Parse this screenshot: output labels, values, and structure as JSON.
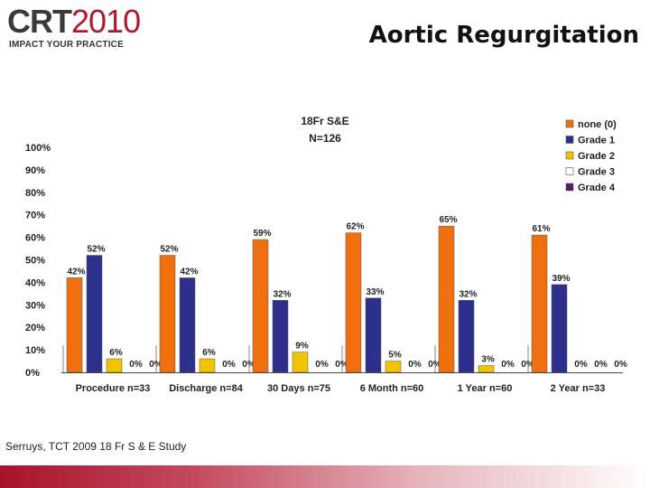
{
  "header": {
    "logo_crt": "CRT",
    "logo_year": "2010",
    "logo_tagline": "IMPACT YOUR PRACTICE",
    "title": "Aortic Regurgitation"
  },
  "caption": "Serruys, TCT 2009 18 Fr S & E Study",
  "colors": {
    "none": "#f07010",
    "grade1": "#2e2e8c",
    "grade2": "#f2c400",
    "grade3": "#ffffff",
    "grade4": "#5a1a6a",
    "footer_accent": "#a8122c"
  },
  "chart_data": {
    "type": "bar",
    "title": "18Fr S&E",
    "subtitle": "N=126",
    "xlabel": "",
    "ylabel": "",
    "ylim": [
      0,
      100
    ],
    "yticks": [
      "0%",
      "10%",
      "20%",
      "30%",
      "40%",
      "50%",
      "60%",
      "70%",
      "80%",
      "90%",
      "100%"
    ],
    "legend_position": "top-right",
    "categories": [
      "Procedure n=33",
      "Discharge n=84",
      "30 Days n=75",
      "6 Month n=60",
      "1 Year n=60",
      "2 Year n=33"
    ],
    "series": [
      {
        "name": "none (0)",
        "color": "#f07010",
        "values": [
          42,
          52,
          59,
          62,
          65,
          61
        ],
        "labels": [
          "42%",
          "52%",
          "59%",
          "62%",
          "65%",
          "61%"
        ]
      },
      {
        "name": "Grade 1",
        "color": "#2e2e8c",
        "values": [
          52,
          42,
          32,
          33,
          32,
          39
        ],
        "labels": [
          "52%",
          "42%",
          "32%",
          "33%",
          "32%",
          "39%"
        ]
      },
      {
        "name": "Grade 2",
        "color": "#f2c400",
        "values": [
          6,
          6,
          9,
          5,
          3,
          0
        ],
        "labels": [
          "6%",
          "6%",
          "9%",
          "5%",
          "3%",
          "0%"
        ]
      },
      {
        "name": "Grade 3",
        "color": "#ffffff",
        "values": [
          0,
          0,
          0,
          0,
          0,
          0
        ],
        "labels": [
          "0%",
          "0%",
          "0%",
          "0%",
          "0%",
          "0%"
        ]
      },
      {
        "name": "Grade 4",
        "color": "#5a1a6a",
        "values": [
          0,
          0,
          0,
          0,
          0,
          0
        ],
        "labels": [
          "0%",
          "0%",
          "0%",
          "0%",
          "0%",
          "0%"
        ]
      }
    ]
  }
}
